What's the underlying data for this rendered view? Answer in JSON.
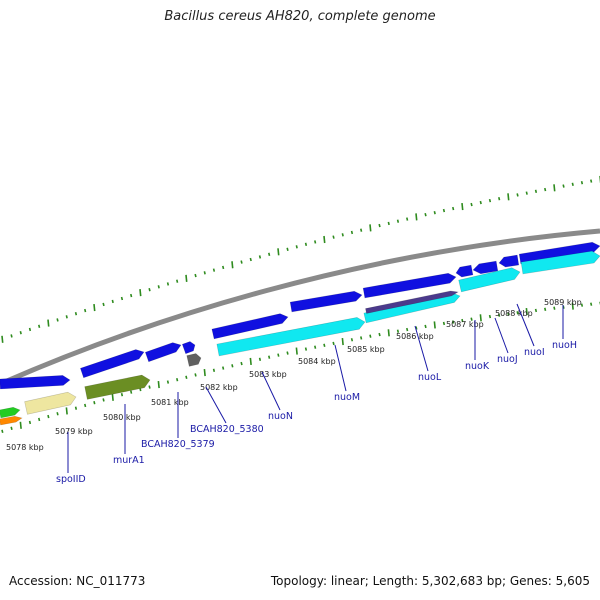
{
  "title": "Bacillus cereus AH820, complete genome",
  "footer": {
    "accession": "Accession: NC_011773",
    "topology": "Topology: linear; Length: 5,302,683 bp; Genes: 5,605"
  },
  "colors": {
    "backbone": "#8a8a8a",
    "cds_forward": "#1010e0",
    "cds_highlight": "#10e8f0",
    "gc_skew": "#2e8b1e",
    "label": "#1a1aa6",
    "murA1": "#6b8e23",
    "spoIID": "#eee6a0",
    "BCAH820_5380": "#606060",
    "nuoL_band": "#4b3a8c",
    "rna_left": "#22cc22",
    "rna_left2": "#ff8800"
  },
  "kbp_ticks": [
    "5078 kbp",
    "5079 kbp",
    "5080 kbp",
    "5081 kbp",
    "5082 kbp",
    "5083 kbp",
    "5084 kbp",
    "5085 kbp",
    "5086 kbp",
    "5087 kbp",
    "5088 kbp",
    "5089 kbp"
  ],
  "genes": [
    "spoIID",
    "murA1",
    "BCAH820_5379",
    "BCAH820_5380",
    "nuoN",
    "nuoM",
    "nuoL",
    "nuoK",
    "nuoJ",
    "nuoI",
    "nuoH"
  ]
}
